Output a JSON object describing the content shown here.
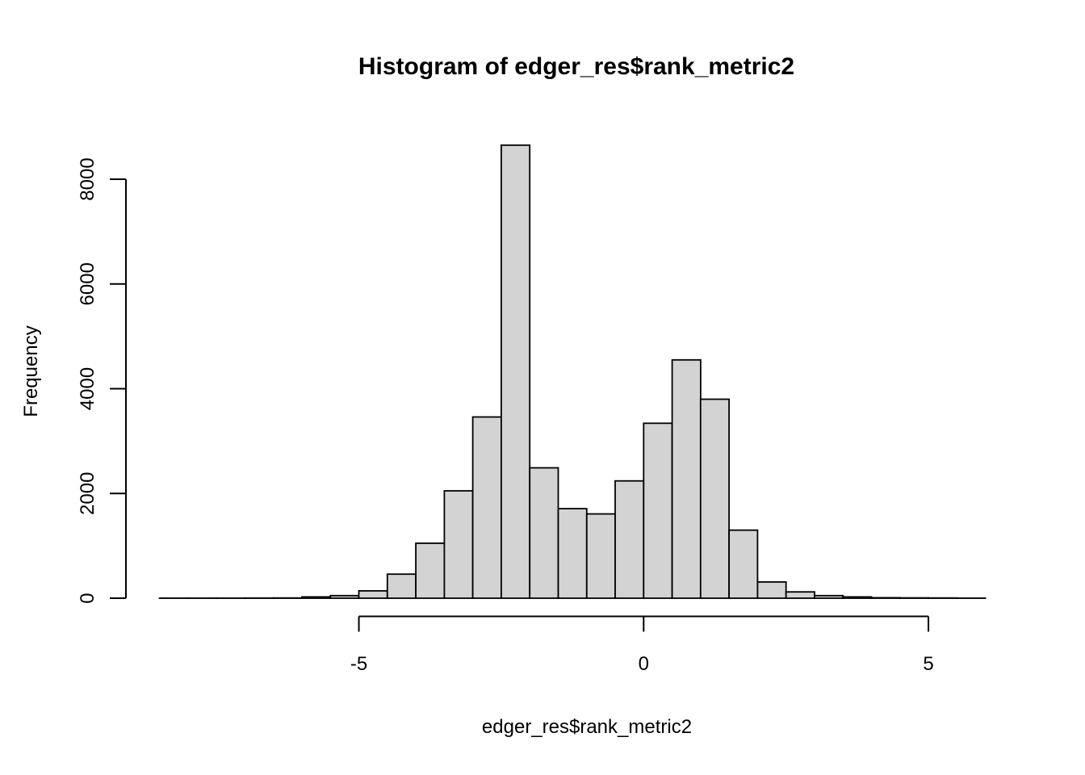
{
  "chart_data": {
    "type": "bar",
    "subtype": "histogram",
    "title": "Histogram of edger_res$rank_metric2",
    "xlabel": "edger_res$rank_metric2",
    "ylabel": "Frequency",
    "bin_start": -8.5,
    "bin_width": 0.5,
    "counts": [
      1,
      1,
      2,
      3,
      5,
      25,
      50,
      140,
      460,
      1050,
      2050,
      3460,
      8650,
      2490,
      1710,
      1610,
      2240,
      3340,
      4550,
      3800,
      1300,
      310,
      120,
      50,
      25,
      10,
      6,
      4,
      2
    ],
    "bin_edges": [
      -8.5,
      -8.0,
      -7.5,
      -7.0,
      -6.5,
      -6.0,
      -5.5,
      -5.0,
      -4.5,
      -4.0,
      -3.5,
      -3.0,
      -2.5,
      -2.0,
      -1.5,
      -1.0,
      -0.5,
      0.0,
      0.5,
      1.0,
      1.5,
      2.0,
      2.5,
      3.0,
      3.5,
      4.0,
      4.5,
      5.0,
      5.5,
      6.0
    ],
    "xlim": [
      -8.5,
      6.0
    ],
    "ylim": [
      0,
      8000
    ],
    "x_ticks": [
      -5,
      0,
      5
    ],
    "x_tick_labels": [
      "-5",
      "0",
      "5"
    ],
    "y_ticks": [
      0,
      2000,
      4000,
      6000,
      8000
    ],
    "y_tick_labels": [
      "0",
      "2000",
      "4000",
      "6000",
      "8000"
    ],
    "grid": false,
    "legend": null,
    "colors": {
      "bar_fill": "#d3d3d3",
      "bar_stroke": "#000000",
      "axis": "#000000",
      "text": "#000000",
      "background": "#ffffff"
    }
  }
}
